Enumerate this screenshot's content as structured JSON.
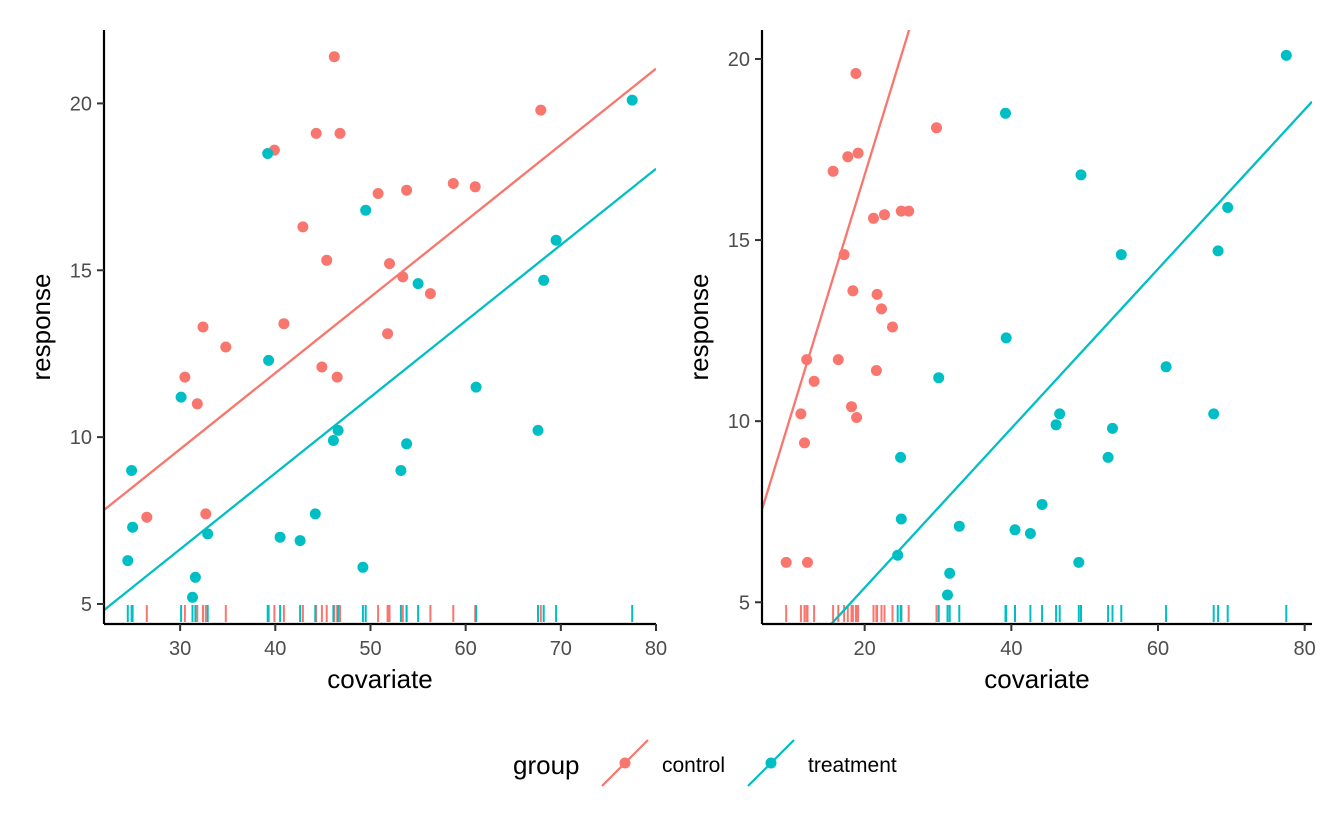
{
  "colors": {
    "control": "#F8766D",
    "treatment": "#00BFC4",
    "axis": "#000000",
    "tick_text": "#4d4d4d"
  },
  "legend": {
    "title": "group",
    "items": [
      "control",
      "treatment"
    ],
    "position": "bottom"
  },
  "chart_data": [
    {
      "type": "scatter",
      "xlabel": "covariate",
      "ylabel": "response",
      "xlim": [
        22,
        80
      ],
      "ylim": [
        4.4,
        22.2
      ],
      "x_ticks": [
        30,
        40,
        50,
        60,
        70,
        80
      ],
      "y_ticks": [
        5,
        10,
        15,
        20
      ],
      "grid": false,
      "rug": true,
      "series": [
        {
          "name": "control",
          "points": [
            [
              26.5,
              7.6
            ],
            [
              30.5,
              11.8
            ],
            [
              31.8,
              11.0
            ],
            [
              32.4,
              13.3
            ],
            [
              32.7,
              7.7
            ],
            [
              34.8,
              12.7
            ],
            [
              39.9,
              18.6
            ],
            [
              40.9,
              13.4
            ],
            [
              42.9,
              16.3
            ],
            [
              44.3,
              19.1
            ],
            [
              44.9,
              12.1
            ],
            [
              45.4,
              15.3
            ],
            [
              46.2,
              21.4
            ],
            [
              46.5,
              11.8
            ],
            [
              46.8,
              19.1
            ],
            [
              50.8,
              17.3
            ],
            [
              51.8,
              13.1
            ],
            [
              52.0,
              15.2
            ],
            [
              53.4,
              14.8
            ],
            [
              53.8,
              17.4
            ],
            [
              56.3,
              14.3
            ],
            [
              58.7,
              17.6
            ],
            [
              61.0,
              17.5
            ],
            [
              67.9,
              19.8
            ]
          ],
          "fit": {
            "intercept": 2.8,
            "slope": 0.228
          }
        },
        {
          "name": "treatment",
          "points": [
            [
              24.5,
              6.3
            ],
            [
              24.9,
              9.0
            ],
            [
              25.0,
              7.3
            ],
            [
              30.1,
              11.2
            ],
            [
              31.3,
              5.2
            ],
            [
              31.6,
              5.8
            ],
            [
              32.9,
              7.1
            ],
            [
              39.2,
              18.5
            ],
            [
              39.3,
              12.3
            ],
            [
              40.5,
              7.0
            ],
            [
              42.6,
              6.9
            ],
            [
              44.2,
              7.7
            ],
            [
              46.1,
              9.9
            ],
            [
              46.6,
              10.2
            ],
            [
              49.2,
              6.1
            ],
            [
              49.5,
              16.8
            ],
            [
              53.2,
              9.0
            ],
            [
              53.8,
              9.8
            ],
            [
              55.0,
              14.6
            ],
            [
              61.1,
              11.5
            ],
            [
              67.6,
              10.2
            ],
            [
              68.2,
              14.7
            ],
            [
              69.5,
              15.9
            ],
            [
              77.5,
              20.1
            ]
          ],
          "fit": {
            "intercept": -0.2,
            "slope": 0.228
          }
        }
      ]
    },
    {
      "type": "scatter",
      "xlabel": "covariate",
      "ylabel": "response",
      "xlim": [
        6,
        81
      ],
      "ylim": [
        4.4,
        20.8
      ],
      "x_ticks": [
        20,
        40,
        60,
        80
      ],
      "y_ticks": [
        5,
        10,
        15,
        20
      ],
      "grid": false,
      "rug": true,
      "series": [
        {
          "name": "control",
          "points": [
            [
              9.3,
              6.1
            ],
            [
              11.3,
              10.2
            ],
            [
              11.8,
              9.4
            ],
            [
              12.1,
              11.7
            ],
            [
              12.2,
              6.1
            ],
            [
              13.1,
              11.1
            ],
            [
              15.7,
              16.9
            ],
            [
              16.4,
              11.7
            ],
            [
              17.2,
              14.6
            ],
            [
              17.7,
              17.3
            ],
            [
              18.2,
              10.4
            ],
            [
              18.4,
              13.6
            ],
            [
              18.8,
              19.6
            ],
            [
              18.9,
              10.1
            ],
            [
              19.1,
              17.4
            ],
            [
              21.2,
              15.6
            ],
            [
              21.6,
              11.4
            ],
            [
              21.7,
              13.5
            ],
            [
              22.3,
              13.1
            ],
            [
              22.7,
              15.7
            ],
            [
              23.8,
              12.6
            ],
            [
              25.0,
              15.8
            ],
            [
              26.0,
              15.8
            ],
            [
              29.8,
              18.1
            ]
          ],
          "fit": {
            "intercept": 3.6,
            "slope": 0.66
          }
        },
        {
          "name": "treatment",
          "points": [
            [
              24.5,
              6.3
            ],
            [
              24.9,
              9.0
            ],
            [
              25.0,
              7.3
            ],
            [
              30.1,
              11.2
            ],
            [
              31.3,
              5.2
            ],
            [
              31.6,
              5.8
            ],
            [
              32.9,
              7.1
            ],
            [
              39.2,
              18.5
            ],
            [
              39.3,
              12.3
            ],
            [
              40.5,
              7.0
            ],
            [
              42.6,
              6.9
            ],
            [
              44.2,
              7.7
            ],
            [
              46.1,
              9.9
            ],
            [
              46.6,
              10.2
            ],
            [
              49.2,
              6.1
            ],
            [
              49.5,
              16.8
            ],
            [
              53.2,
              9.0
            ],
            [
              53.8,
              9.8
            ],
            [
              55.0,
              14.6
            ],
            [
              61.1,
              11.5
            ],
            [
              67.6,
              10.2
            ],
            [
              68.2,
              14.7
            ],
            [
              69.5,
              15.9
            ],
            [
              77.5,
              20.1
            ]
          ],
          "fit": {
            "intercept": 1.0,
            "slope": 0.22
          }
        }
      ]
    }
  ]
}
